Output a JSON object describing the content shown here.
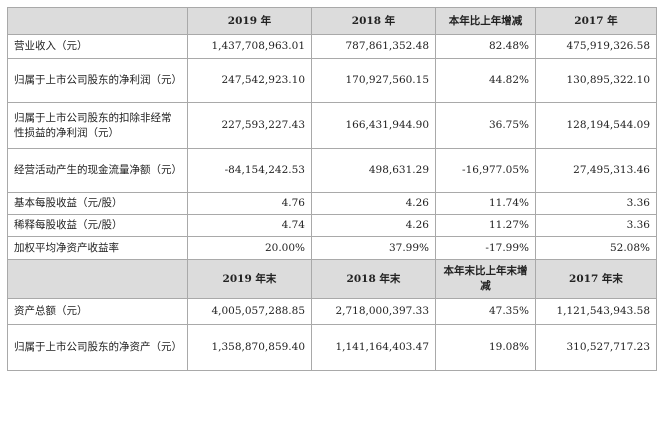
{
  "section1": {
    "headers": [
      "",
      "2019 年",
      "2018 年",
      "本年比上年增减",
      "2017 年"
    ],
    "rows": [
      {
        "label": "营业收入（元）",
        "values": [
          "1,437,708,963.01",
          "787,861,352.48",
          "82.48%",
          "475,919,326.58"
        ]
      },
      {
        "label": "归属于上市公司股东的净利润（元）",
        "values": [
          "247,542,923.10",
          "170,927,560.15",
          "44.82%",
          "130,895,322.10"
        ]
      },
      {
        "label": "归属于上市公司股东的扣除非经常性损益的净利润（元）",
        "values": [
          "227,593,227.43",
          "166,431,944.90",
          "36.75%",
          "128,194,544.09"
        ]
      },
      {
        "label": "经营活动产生的现金流量净额（元）",
        "values": [
          "-84,154,242.53",
          "498,631.29",
          "-16,977.05%",
          "27,495,313.46"
        ]
      },
      {
        "label": "基本每股收益（元/股）",
        "values": [
          "4.76",
          "4.26",
          "11.74%",
          "3.36"
        ]
      },
      {
        "label": "稀释每股收益（元/股）",
        "values": [
          "4.74",
          "4.26",
          "11.27%",
          "3.36"
        ]
      },
      {
        "label": "加权平均净资产收益率",
        "values": [
          "20.00%",
          "37.99%",
          "-17.99%",
          "52.08%"
        ]
      }
    ]
  },
  "section2": {
    "headers": [
      "",
      "2019 年末",
      "2018 年末",
      "本年末比上年末增减",
      "2017 年末"
    ],
    "rows": [
      {
        "label": "资产总额（元）",
        "values": [
          "4,005,057,288.85",
          "2,718,000,397.33",
          "47.35%",
          "1,121,543,943.58"
        ]
      },
      {
        "label": "归属于上市公司股东的净资产（元）",
        "values": [
          "1,358,870,859.40",
          "1,141,164,403.47",
          "19.08%",
          "310,527,717.23"
        ]
      }
    ]
  }
}
